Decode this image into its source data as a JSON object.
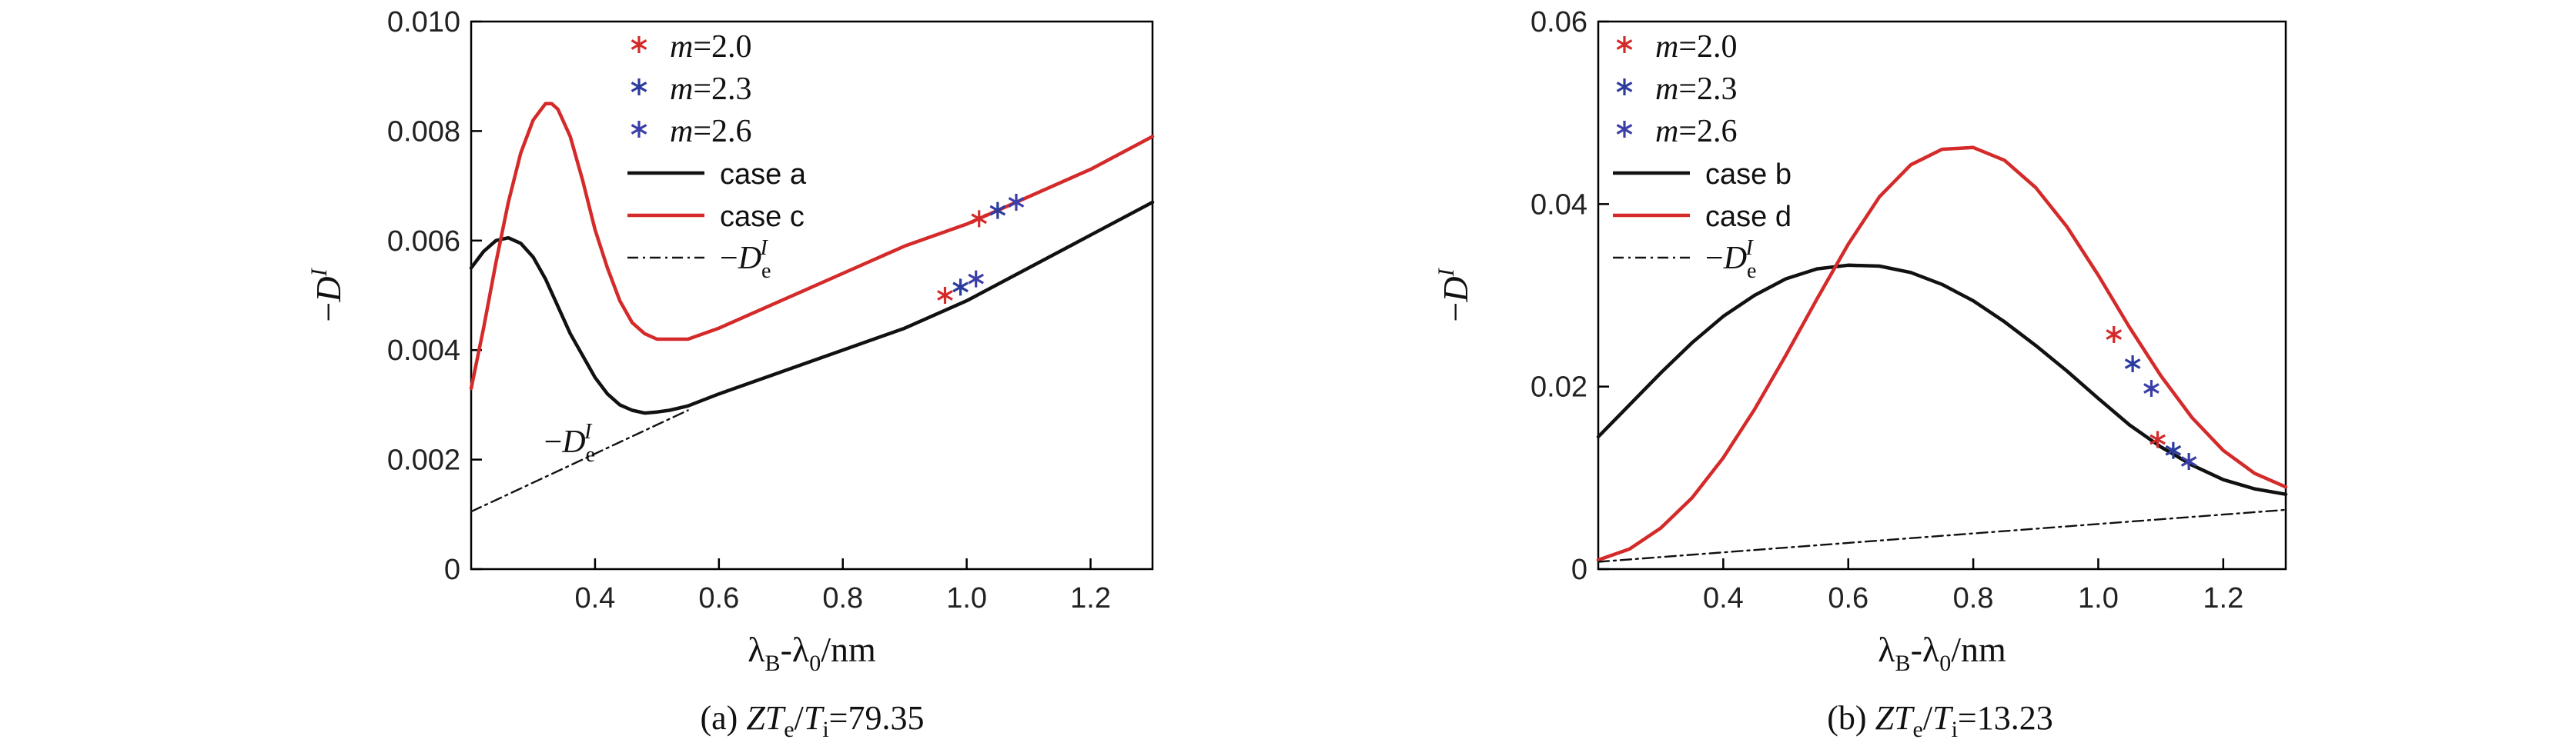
{
  "chart_data": [
    {
      "id": "a",
      "type": "line",
      "caption": {
        "prefix": "(a) ",
        "z": "Z",
        "t1": "T",
        "s1": "e",
        "slash": "/",
        "t2": "T",
        "s2": "i",
        "value": "=79.35"
      },
      "xlabel": {
        "main1": "λ",
        "sub1": "B",
        "mid": "-λ",
        "sub2": "0",
        "tail": "/nm"
      },
      "ylabel": {
        "minus": "−",
        "main": "D",
        "sup": "I"
      },
      "xlim": [
        0.2,
        1.3
      ],
      "ylim": [
        0,
        0.01
      ],
      "xticks": [
        "0.4",
        "0.6",
        "0.8",
        "1.0",
        "1.2"
      ],
      "xtick_values": [
        0.4,
        0.6,
        0.8,
        1.0,
        1.2
      ],
      "yticks": [
        "0",
        "0.002",
        "0.004",
        "0.006",
        "0.008",
        "0.010"
      ],
      "ytick_values": [
        0,
        0.002,
        0.004,
        0.006,
        0.008,
        0.01
      ],
      "series": [
        {
          "name": "case a",
          "color": "#111111",
          "style": "solid",
          "x": [
            0.2,
            0.22,
            0.24,
            0.26,
            0.28,
            0.3,
            0.32,
            0.34,
            0.36,
            0.38,
            0.4,
            0.42,
            0.44,
            0.46,
            0.48,
            0.5,
            0.52,
            0.55,
            0.6,
            0.7,
            0.8,
            0.9,
            1.0,
            1.1,
            1.2,
            1.3
          ],
          "y": [
            0.0055,
            0.0058,
            0.006,
            0.00605,
            0.00595,
            0.0057,
            0.0053,
            0.0048,
            0.0043,
            0.0039,
            0.0035,
            0.0032,
            0.003,
            0.0029,
            0.00285,
            0.00287,
            0.0029,
            0.00298,
            0.0032,
            0.0036,
            0.004,
            0.0044,
            0.0049,
            0.0055,
            0.0061,
            0.0067
          ]
        },
        {
          "name": "case c",
          "color": "#d42a2a",
          "style": "solid",
          "x": [
            0.2,
            0.22,
            0.24,
            0.26,
            0.28,
            0.3,
            0.32,
            0.33,
            0.34,
            0.36,
            0.38,
            0.4,
            0.42,
            0.44,
            0.46,
            0.48,
            0.5,
            0.52,
            0.55,
            0.6,
            0.7,
            0.8,
            0.9,
            1.0,
            1.1,
            1.2,
            1.3
          ],
          "y": [
            0.0033,
            0.0044,
            0.0056,
            0.0067,
            0.0076,
            0.0082,
            0.0085,
            0.0085,
            0.0084,
            0.0079,
            0.0071,
            0.0062,
            0.0055,
            0.0049,
            0.0045,
            0.0043,
            0.0042,
            0.0042,
            0.0042,
            0.0044,
            0.0049,
            0.0054,
            0.0059,
            0.0063,
            0.0068,
            0.0073,
            0.0079
          ]
        },
        {
          "name": "−D_e^I",
          "color": "#111111",
          "style": "dashdot",
          "x": [
            0.2,
            0.55
          ],
          "y": [
            0.00105,
            0.0029
          ]
        }
      ],
      "markers": [
        {
          "name": "m=2.0",
          "color": "#d42a2a",
          "points": [
            [
              0.965,
              0.005
            ],
            [
              1.02,
              0.0064
            ]
          ]
        },
        {
          "name": "m=2.3",
          "color": "#2b3b9e",
          "points": [
            [
              0.99,
              0.00515
            ],
            [
              1.05,
              0.00655
            ]
          ]
        },
        {
          "name": "m=2.6",
          "color": "#3b3ea8",
          "points": [
            [
              1.015,
              0.0053
            ],
            [
              1.08,
              0.0067
            ]
          ]
        }
      ],
      "legend": {
        "placement": "top-center",
        "m_prefix": "m",
        "entries": [
          "=2.0",
          "=2.3",
          "=2.6",
          "case a",
          "case c",
          "−D_e^I"
        ]
      },
      "annotation": {
        "text": "−D_e^I",
        "at": [
          0.33,
          0.0023
        ]
      }
    },
    {
      "id": "b",
      "type": "line",
      "caption": {
        "prefix": "(b) ",
        "z": "Z",
        "t1": "T",
        "s1": "e",
        "slash": "/",
        "t2": "T",
        "s2": "i",
        "value": "=13.23"
      },
      "xlabel": {
        "main1": "λ",
        "sub1": "B",
        "mid": "-λ",
        "sub2": "0",
        "tail": "/nm"
      },
      "ylabel": {
        "minus": "−",
        "main": "D",
        "sup": "I"
      },
      "xlim": [
        0.2,
        1.3
      ],
      "ylim": [
        0,
        0.06
      ],
      "xticks": [
        "0.4",
        "0.6",
        "0.8",
        "1.0",
        "1.2"
      ],
      "xtick_values": [
        0.4,
        0.6,
        0.8,
        1.0,
        1.2
      ],
      "yticks": [
        "0",
        "0.02",
        "0.04",
        "0.06"
      ],
      "ytick_values": [
        0,
        0.02,
        0.04,
        0.06
      ],
      "series": [
        {
          "name": "case b",
          "color": "#111111",
          "style": "solid",
          "x": [
            0.2,
            0.25,
            0.3,
            0.35,
            0.4,
            0.45,
            0.5,
            0.55,
            0.6,
            0.65,
            0.7,
            0.75,
            0.8,
            0.85,
            0.9,
            0.95,
            1.0,
            1.05,
            1.1,
            1.15,
            1.2,
            1.25,
            1.3
          ],
          "y": [
            0.0145,
            0.018,
            0.0215,
            0.0248,
            0.0277,
            0.03,
            0.0318,
            0.0329,
            0.0333,
            0.0332,
            0.0325,
            0.0312,
            0.0294,
            0.0271,
            0.0245,
            0.0217,
            0.0187,
            0.0158,
            0.0134,
            0.0114,
            0.0098,
            0.0088,
            0.0082
          ]
        },
        {
          "name": "case d",
          "color": "#d42a2a",
          "style": "solid",
          "x": [
            0.2,
            0.25,
            0.3,
            0.35,
            0.4,
            0.45,
            0.5,
            0.55,
            0.6,
            0.65,
            0.7,
            0.75,
            0.8,
            0.85,
            0.9,
            0.95,
            1.0,
            1.05,
            1.1,
            1.15,
            1.2,
            1.25,
            1.3
          ],
          "y": [
            0.001,
            0.0022,
            0.0045,
            0.0078,
            0.0122,
            0.0175,
            0.0234,
            0.0296,
            0.0356,
            0.0408,
            0.0443,
            0.046,
            0.0462,
            0.0448,
            0.0418,
            0.0375,
            0.0322,
            0.0265,
            0.0212,
            0.0166,
            0.013,
            0.0105,
            0.009
          ]
        },
        {
          "name": "−D_e^I",
          "color": "#111111",
          "style": "dashdot",
          "x": [
            0.2,
            1.3
          ],
          "y": [
            0.0008,
            0.0065
          ]
        }
      ],
      "markers": [
        {
          "name": "m=2.0",
          "color": "#d42a2a",
          "points": [
            [
              1.025,
              0.0257
            ],
            [
              1.095,
              0.0142
            ]
          ]
        },
        {
          "name": "m=2.3",
          "color": "#2b3b9e",
          "points": [
            [
              1.055,
              0.0225
            ],
            [
              1.12,
              0.013
            ]
          ]
        },
        {
          "name": "m=2.6",
          "color": "#3b3ea8",
          "points": [
            [
              1.085,
              0.0198
            ],
            [
              1.145,
              0.0118
            ]
          ]
        }
      ],
      "legend": {
        "placement": "top-left",
        "m_prefix": "m",
        "entries": [
          "=2.0",
          "=2.3",
          "=2.6",
          "case b",
          "case d",
          "−D_e^I"
        ]
      }
    }
  ]
}
